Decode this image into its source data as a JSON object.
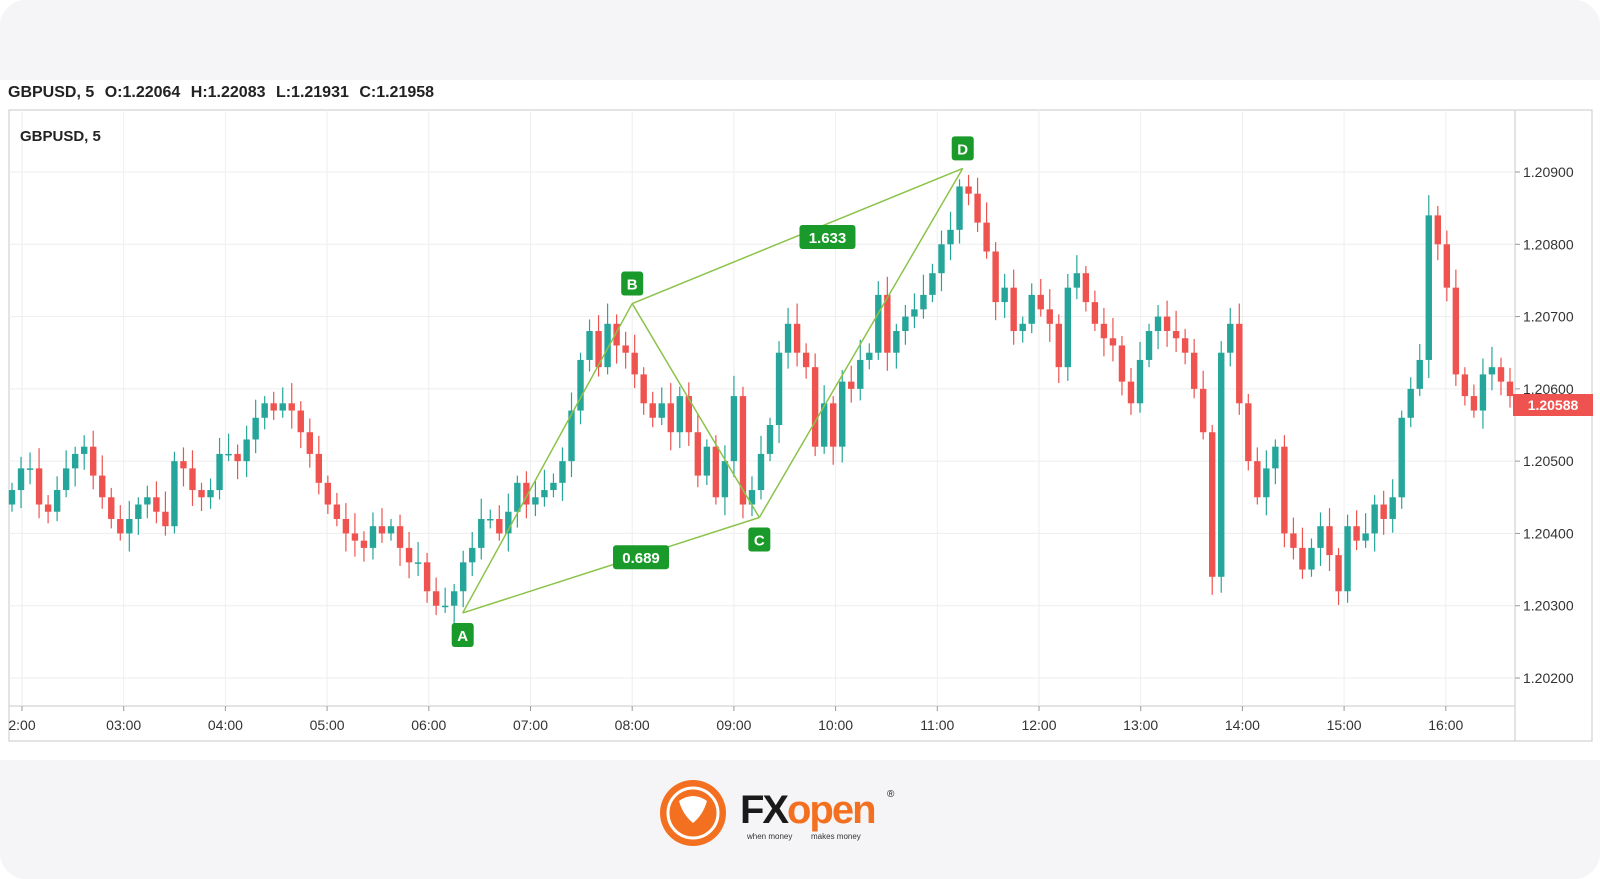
{
  "header": {
    "symbol": "GBPUSD, 5",
    "open": "O:1.22064",
    "high": "H:1.22083",
    "low": "L:1.21931",
    "close": "C:1.21958"
  },
  "chart_data": {
    "type": "candlestick",
    "title": "GBPUSD, 5",
    "x_ticks": [
      "2:00",
      "03:00",
      "04:00",
      "05:00",
      "06:00",
      "07:00",
      "08:00",
      "09:00",
      "10:00",
      "11:00",
      "12:00",
      "13:00",
      "14:00",
      "15:00",
      "16:00"
    ],
    "y_ticks": [
      "1.20900",
      "1.20800",
      "1.20700",
      "1.20600",
      "1.20500",
      "1.20400",
      "1.20300",
      "1.20200"
    ],
    "ylim": [
      1.2016,
      1.2098
    ],
    "last_price": "1.20588",
    "grid": true,
    "colors": {
      "up": "#26a69a",
      "down": "#ef5350",
      "pattern": "#8bc34a",
      "marker": "#1a9a2a",
      "last_price_bg": "#ef5350"
    },
    "pattern_points": [
      {
        "label": "A",
        "time": "06:20",
        "price": 1.2029
      },
      {
        "label": "B",
        "time": "08:00",
        "price": 1.20718
      },
      {
        "label": "C",
        "time": "09:15",
        "price": 1.20422
      },
      {
        "label": "D",
        "time": "11:15",
        "price": 1.20905
      }
    ],
    "ratios": [
      {
        "label": "0.689",
        "between": [
          "A",
          "C"
        ]
      },
      {
        "label": "1.633",
        "between": [
          "B",
          "D"
        ]
      }
    ],
    "candles_close": [
      1.2046,
      1.2049,
      1.2049,
      1.2044,
      1.2043,
      1.2046,
      1.2049,
      1.2051,
      1.2052,
      1.2048,
      1.2045,
      1.2042,
      1.204,
      1.2042,
      1.2044,
      1.2045,
      1.2043,
      1.2041,
      1.205,
      1.2049,
      1.2046,
      1.2045,
      1.2046,
      1.2051,
      1.2051,
      1.205,
      1.2053,
      1.2056,
      1.2058,
      1.2057,
      1.2058,
      1.2057,
      1.2054,
      1.2051,
      1.2047,
      1.2044,
      1.2042,
      1.204,
      1.2039,
      1.2038,
      1.2041,
      1.204,
      1.2041,
      1.2038,
      1.2036,
      1.2036,
      1.2032,
      1.203,
      1.203,
      1.2032,
      1.2036,
      1.2038,
      1.2042,
      1.2042,
      1.204,
      1.2043,
      1.2047,
      1.2044,
      1.2045,
      1.2046,
      1.2047,
      1.205,
      1.2057,
      1.2064,
      1.2068,
      1.2063,
      1.2069,
      1.2066,
      1.2065,
      1.2062,
      1.2058,
      1.2056,
      1.2058,
      1.2054,
      1.2059,
      1.2054,
      1.2048,
      1.2052,
      1.2045,
      1.205,
      1.2059,
      1.2044,
      1.2046,
      1.2051,
      1.2055,
      1.2065,
      1.2069,
      1.2065,
      1.2063,
      1.2052,
      1.2058,
      1.2052,
      1.2061,
      1.206,
      1.2064,
      1.2065,
      1.2073,
      1.2065,
      1.2068,
      1.207,
      1.2071,
      1.2073,
      1.2076,
      1.208,
      1.2082,
      1.2088,
      1.2087,
      1.2083,
      1.2079,
      1.2072,
      1.2074,
      1.2068,
      1.2069,
      1.2073,
      1.2071,
      1.2069,
      1.2063,
      1.2074,
      1.2076,
      1.2072,
      1.2069,
      1.2067,
      1.2066,
      1.2061,
      1.2058,
      1.2064,
      1.2068,
      1.207,
      1.2068,
      1.2067,
      1.2065,
      1.206,
      1.2054,
      1.2034,
      1.2065,
      1.2069,
      1.2058,
      1.205,
      1.2045,
      1.2049,
      1.2052,
      1.204,
      1.2038,
      1.2035,
      1.2038,
      1.2041,
      1.2037,
      1.2032,
      1.2041,
      1.2039,
      1.204,
      1.2044,
      1.2042,
      1.2045,
      1.2056,
      1.206,
      1.2064,
      1.2084,
      1.208,
      1.2074,
      1.2062,
      1.2059,
      1.2057,
      1.2062,
      1.2063,
      1.2061,
      1.2059
    ]
  },
  "logo": {
    "brand_fx": "FX",
    "brand_open": "open",
    "registered": "®",
    "tagline_a": "when money",
    "tagline_b": "makes money"
  }
}
